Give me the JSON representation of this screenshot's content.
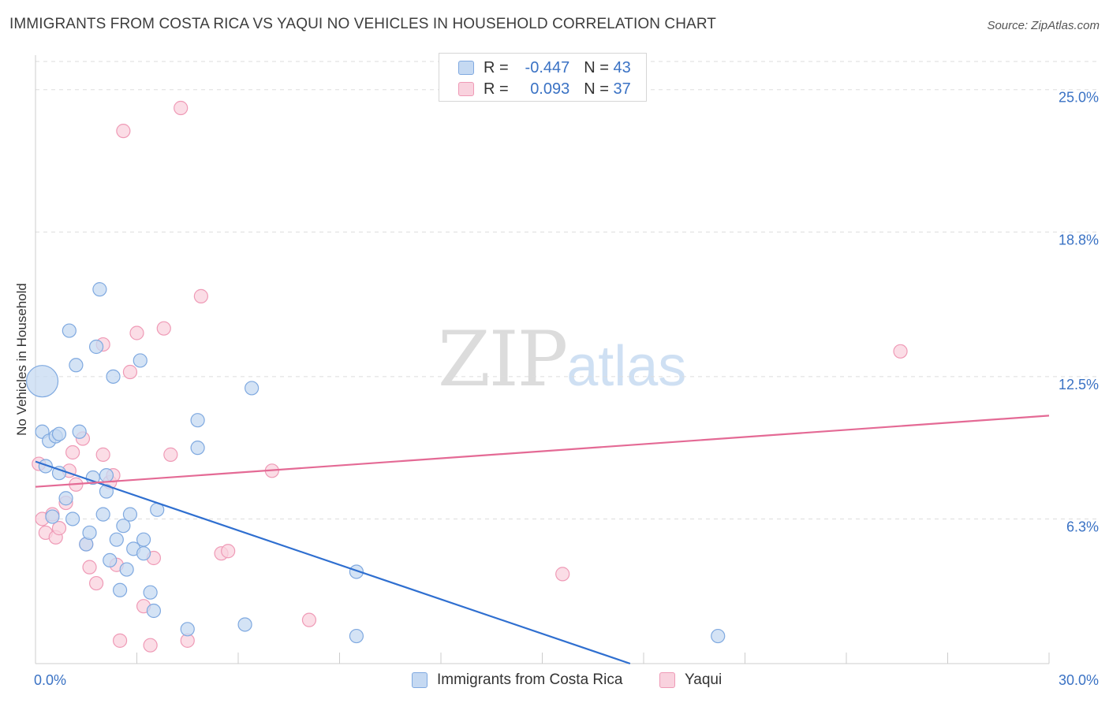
{
  "header": {
    "title": "IMMIGRANTS FROM COSTA RICA VS YAQUI NO VEHICLES IN HOUSEHOLD CORRELATION CHART",
    "source": "Source: ZipAtlas.com"
  },
  "legend": {
    "rows": [
      {
        "r_label": "R =",
        "r_value": "-0.447",
        "n_label": "N =",
        "n_value": "43"
      },
      {
        "r_label": "R =",
        "r_value": "0.093",
        "n_label": "N =",
        "n_value": "37"
      }
    ]
  },
  "watermark": {
    "zip": "ZIP",
    "atlas": "atlas"
  },
  "colors": {
    "blue_fill": "#c5d9f2",
    "blue_stroke": "#7fa9e0",
    "blue_line": "#2f6fd0",
    "pink_fill": "#f9d2de",
    "pink_stroke": "#ef9ab6",
    "pink_line": "#e46a95",
    "axis_text": "#3a72c4",
    "grid": "#dddddd"
  },
  "chart_data": {
    "type": "scatter",
    "title": "IMMIGRANTS FROM COSTA RICA VS YAQUI NO VEHICLES IN HOUSEHOLD CORRELATION CHART",
    "xlabel": "",
    "ylabel": "No Vehicles in Household",
    "xlim": [
      0,
      30
    ],
    "ylim": [
      0,
      26.5
    ],
    "x_tick_labels": [
      "0.0%",
      "30.0%"
    ],
    "y_ticks": [
      6.3,
      12.5,
      18.8,
      25.0
    ],
    "y_tick_labels": [
      "6.3%",
      "12.5%",
      "18.8%",
      "25.0%"
    ],
    "grid": "horizontal dashed",
    "legend_position": "bottom",
    "series": [
      {
        "name": "Immigrants from Costa Rica",
        "color": "#7fa9e0",
        "r": -0.447,
        "n": 43,
        "points": [
          [
            0.2,
            12.3
          ],
          [
            0.2,
            10.1
          ],
          [
            0.3,
            8.6
          ],
          [
            0.4,
            9.7
          ],
          [
            0.5,
            6.4
          ],
          [
            0.6,
            9.9
          ],
          [
            0.7,
            10.0
          ],
          [
            0.7,
            8.3
          ],
          [
            0.9,
            7.2
          ],
          [
            1.0,
            14.5
          ],
          [
            1.1,
            6.3
          ],
          [
            1.2,
            13.0
          ],
          [
            1.3,
            10.1
          ],
          [
            1.5,
            5.2
          ],
          [
            1.6,
            5.7
          ],
          [
            1.7,
            8.1
          ],
          [
            1.8,
            13.8
          ],
          [
            1.9,
            16.3
          ],
          [
            2.0,
            6.5
          ],
          [
            2.1,
            8.2
          ],
          [
            2.1,
            7.5
          ],
          [
            2.2,
            4.5
          ],
          [
            2.3,
            12.5
          ],
          [
            2.4,
            5.4
          ],
          [
            2.5,
            3.2
          ],
          [
            2.6,
            6.0
          ],
          [
            2.7,
            4.1
          ],
          [
            2.8,
            6.5
          ],
          [
            2.9,
            5.0
          ],
          [
            3.1,
            13.2
          ],
          [
            3.2,
            4.8
          ],
          [
            3.2,
            5.4
          ],
          [
            3.4,
            3.1
          ],
          [
            3.5,
            2.3
          ],
          [
            3.6,
            6.7
          ],
          [
            4.5,
            1.5
          ],
          [
            4.8,
            10.6
          ],
          [
            4.8,
            9.4
          ],
          [
            6.2,
            1.7
          ],
          [
            6.4,
            12.0
          ],
          [
            9.5,
            4.0
          ],
          [
            9.5,
            1.2
          ],
          [
            20.2,
            1.2
          ]
        ],
        "trend": {
          "x_start": 0.0,
          "y_start": 8.8,
          "x_end": 17.6,
          "y_end": 0.0
        }
      },
      {
        "name": "Yaqui",
        "color": "#ef9ab6",
        "r": 0.093,
        "n": 37,
        "points": [
          [
            0.1,
            8.7
          ],
          [
            0.2,
            6.3
          ],
          [
            0.3,
            5.7
          ],
          [
            0.5,
            6.5
          ],
          [
            0.6,
            5.5
          ],
          [
            0.7,
            5.9
          ],
          [
            0.9,
            7.0
          ],
          [
            1.0,
            8.4
          ],
          [
            1.1,
            9.2
          ],
          [
            1.2,
            7.8
          ],
          [
            1.4,
            9.8
          ],
          [
            1.5,
            5.2
          ],
          [
            1.6,
            4.2
          ],
          [
            1.8,
            3.5
          ],
          [
            2.0,
            13.9
          ],
          [
            2.0,
            9.1
          ],
          [
            2.2,
            7.9
          ],
          [
            2.3,
            8.2
          ],
          [
            2.4,
            4.3
          ],
          [
            2.5,
            1.0
          ],
          [
            2.6,
            23.2
          ],
          [
            2.8,
            12.7
          ],
          [
            3.0,
            14.4
          ],
          [
            3.2,
            2.5
          ],
          [
            3.4,
            0.8
          ],
          [
            3.5,
            4.6
          ],
          [
            3.8,
            14.6
          ],
          [
            4.0,
            9.1
          ],
          [
            4.3,
            24.2
          ],
          [
            4.5,
            1.0
          ],
          [
            4.9,
            16.0
          ],
          [
            5.5,
            4.8
          ],
          [
            5.7,
            4.9
          ],
          [
            7.0,
            8.4
          ],
          [
            8.1,
            1.9
          ],
          [
            15.6,
            3.9
          ],
          [
            25.6,
            13.6
          ]
        ],
        "trend": {
          "x_start": 0.0,
          "y_start": 7.7,
          "x_end": 30.0,
          "y_end": 10.8
        }
      }
    ]
  },
  "bottom_legend": {
    "items": [
      {
        "label": "Immigrants from Costa Rica"
      },
      {
        "label": "Yaqui"
      }
    ]
  }
}
